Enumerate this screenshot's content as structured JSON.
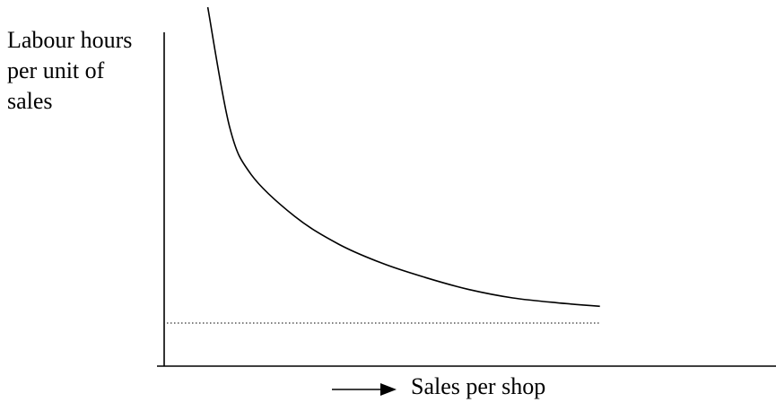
{
  "chart_data": {
    "type": "line",
    "title": "",
    "ylabel_lines": [
      "Labour hours",
      "per unit of",
      "sales"
    ],
    "xlabel": "Sales per shop",
    "x_direction_arrow": true,
    "axes_ticks": false,
    "grid": false,
    "series": [
      {
        "style": "solid",
        "color": "#000000",
        "shape": "decreasing convex curve flattening toward the asymptote",
        "x": [
          0.1,
          0.15,
          0.2,
          0.3,
          0.4,
          0.5,
          0.6,
          0.7,
          0.8,
          0.9,
          1.0
        ],
        "y": [
          3.0,
          2.0,
          1.6,
          1.25,
          1.02,
          0.86,
          0.74,
          0.64,
          0.57,
          0.53,
          0.5
        ]
      },
      {
        "style": "dotted",
        "color": "#000000",
        "shape": "horizontal asymptote",
        "x": [
          0.0,
          1.0
        ],
        "y": [
          0.36,
          0.36
        ]
      }
    ],
    "xlim": [
      0,
      1.4
    ],
    "ylim": [
      0,
      3.0
    ]
  }
}
